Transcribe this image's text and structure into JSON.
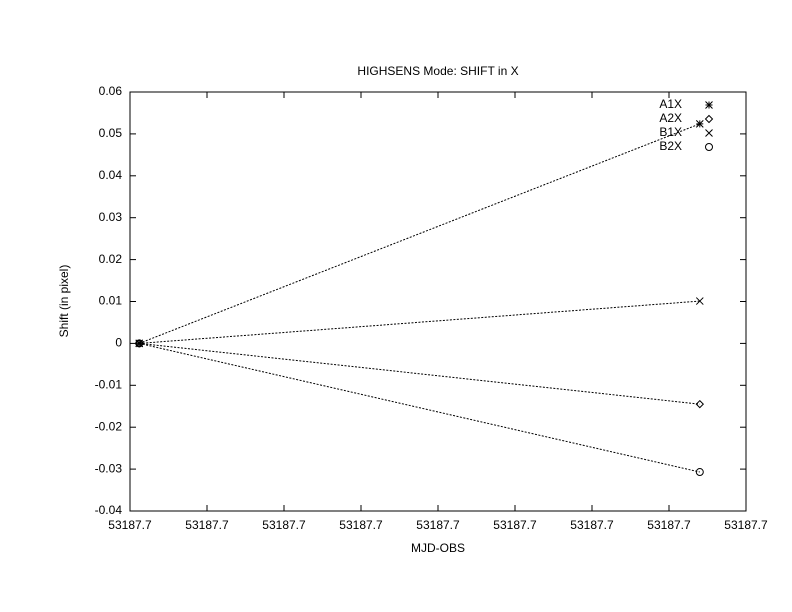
{
  "chart_data": {
    "type": "line",
    "title": "HIGHSENS Mode: SHIFT in X",
    "x_label": "MJD-OBS",
    "y_label": "Shift (in pixel)",
    "x": [
      53187.70012,
      53187.7074
    ],
    "series": [
      {
        "name": "A1X",
        "color": "#000000",
        "marker": "star",
        "values": [
          0,
          0.0524
        ]
      },
      {
        "name": "A2X",
        "color": "#000000",
        "marker": "diamond",
        "values": [
          0,
          -0.0145
        ]
      },
      {
        "name": "B1X",
        "color": "#000000",
        "marker": "cross",
        "values": [
          0,
          0.0101
        ]
      },
      {
        "name": "B2X",
        "color": "#000000",
        "marker": "circle",
        "values": [
          0,
          -0.0307
        ]
      }
    ],
    "xlim": [
      53187.7,
      53187.708
    ],
    "xticks": [
      {
        "value": 53187.7,
        "label": "53187.7"
      },
      {
        "value": 53187.701,
        "label": "53187.7"
      },
      {
        "value": 53187.702,
        "label": "53187.7"
      },
      {
        "value": 53187.703,
        "label": "53187.7"
      },
      {
        "value": 53187.704,
        "label": "53187.7"
      },
      {
        "value": 53187.705,
        "label": "53187.7"
      },
      {
        "value": 53187.706,
        "label": "53187.7"
      },
      {
        "value": 53187.707,
        "label": "53187.7"
      },
      {
        "value": 53187.708,
        "label": "53187.7"
      }
    ],
    "ylim": [
      -0.04,
      0.06
    ],
    "yticks": [
      -0.04,
      -0.03,
      -0.02,
      -0.01,
      0,
      0.01,
      0.02,
      0.03,
      0.04,
      0.05,
      0.06
    ],
    "grid": false,
    "legend": "top-right"
  }
}
